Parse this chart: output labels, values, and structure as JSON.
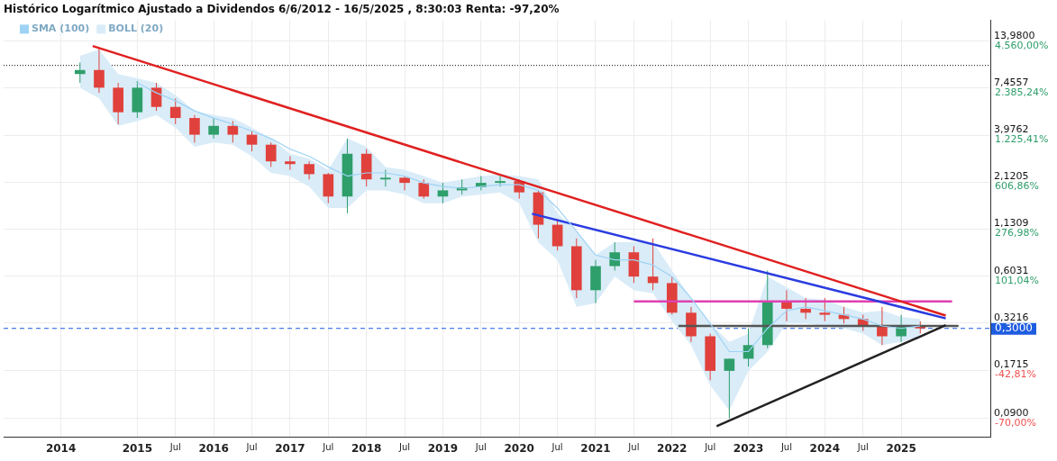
{
  "chart_data": {
    "type": "candlestick",
    "title": "Histórico Logarítmico Ajustado a Dividendos 6/6/2012 - 16/5/2025 , 8:30:03 Renta: -97,20%",
    "x": [
      "2014-04",
      "2014-07",
      "2014-10",
      "2015-01",
      "2015-04",
      "2015-07",
      "2015-10",
      "2016-01",
      "2016-04",
      "2016-07",
      "2016-10",
      "2017-01",
      "2017-04",
      "2017-07",
      "2017-10",
      "2018-01",
      "2018-04",
      "2018-07",
      "2018-10",
      "2019-01",
      "2019-04",
      "2019-07",
      "2019-10",
      "2020-01",
      "2020-04",
      "2020-07",
      "2020-10",
      "2021-01",
      "2021-04",
      "2021-07",
      "2021-10",
      "2022-01",
      "2022-04",
      "2022-07",
      "2022-10",
      "2023-01",
      "2023-04",
      "2023-07",
      "2023-10",
      "2024-01",
      "2024-04",
      "2024-07",
      "2024-10",
      "2025-01",
      "2025-04"
    ],
    "ohlc": [
      [
        9.0,
        10.5,
        8.0,
        9.5
      ],
      [
        9.5,
        12.8,
        7.0,
        7.5
      ],
      [
        7.5,
        8.0,
        4.6,
        5.4
      ],
      [
        5.4,
        8.2,
        5.0,
        7.5
      ],
      [
        7.5,
        8.0,
        5.5,
        5.8
      ],
      [
        5.8,
        6.5,
        4.6,
        5.0
      ],
      [
        5.0,
        5.2,
        3.6,
        4.0
      ],
      [
        4.0,
        5.0,
        3.8,
        4.5
      ],
      [
        4.5,
        4.8,
        3.6,
        4.0
      ],
      [
        4.0,
        4.2,
        3.2,
        3.5
      ],
      [
        3.5,
        3.6,
        2.6,
        2.8
      ],
      [
        2.8,
        3.0,
        2.5,
        2.7
      ],
      [
        2.7,
        2.8,
        2.2,
        2.36
      ],
      [
        2.36,
        2.4,
        1.6,
        1.75
      ],
      [
        1.75,
        3.8,
        1.4,
        3.1
      ],
      [
        3.1,
        3.3,
        2.0,
        2.2
      ],
      [
        2.2,
        2.5,
        2.0,
        2.25
      ],
      [
        2.25,
        2.3,
        1.9,
        2.1
      ],
      [
        2.1,
        2.2,
        1.7,
        1.75
      ],
      [
        1.75,
        2.1,
        1.6,
        1.9
      ],
      [
        1.9,
        2.2,
        1.8,
        1.98
      ],
      [
        1.98,
        2.3,
        1.9,
        2.1
      ],
      [
        2.1,
        2.3,
        2.0,
        2.15
      ],
      [
        2.15,
        2.2,
        1.7,
        1.85
      ],
      [
        1.85,
        1.9,
        1.0,
        1.2
      ],
      [
        1.2,
        1.3,
        0.85,
        0.9
      ],
      [
        0.9,
        1.0,
        0.45,
        0.5
      ],
      [
        0.5,
        0.75,
        0.42,
        0.69
      ],
      [
        0.69,
        0.95,
        0.65,
        0.83
      ],
      [
        0.83,
        0.9,
        0.55,
        0.6
      ],
      [
        0.6,
        1.0,
        0.5,
        0.55
      ],
      [
        0.55,
        0.6,
        0.36,
        0.37
      ],
      [
        0.37,
        0.4,
        0.25,
        0.27
      ],
      [
        0.27,
        0.28,
        0.15,
        0.17
      ],
      [
        0.17,
        0.2,
        0.09,
        0.2
      ],
      [
        0.2,
        0.3,
        0.18,
        0.24
      ],
      [
        0.24,
        0.65,
        0.23,
        0.43
      ],
      [
        0.43,
        0.5,
        0.33,
        0.39
      ],
      [
        0.39,
        0.45,
        0.34,
        0.37
      ],
      [
        0.37,
        0.45,
        0.33,
        0.36
      ],
      [
        0.36,
        0.4,
        0.32,
        0.34
      ],
      [
        0.34,
        0.36,
        0.29,
        0.31
      ],
      [
        0.31,
        0.4,
        0.24,
        0.27
      ],
      [
        0.27,
        0.36,
        0.25,
        0.31
      ],
      [
        0.31,
        0.33,
        0.28,
        0.3
      ]
    ],
    "colors": [
      "#2e9e6a",
      "#e0413c",
      "#e0413c",
      "#2e9e6a",
      "#e0413c",
      "#e0413c",
      "#e0413c",
      "#2e9e6a",
      "#e0413c",
      "#e0413c",
      "#e0413c",
      "#e0413c",
      "#e0413c",
      "#e0413c",
      "#2e9e6a",
      "#e0413c",
      "#2e9e6a",
      "#e0413c",
      "#e0413c",
      "#2e9e6a",
      "#2e9e6a",
      "#2e9e6a",
      "#2e9e6a",
      "#e0413c",
      "#e0413c",
      "#e0413c",
      "#e0413c",
      "#2e9e6a",
      "#2e9e6a",
      "#e0413c",
      "#e0413c",
      "#e0413c",
      "#e0413c",
      "#e0413c",
      "#2e9e6a",
      "#2e9e6a",
      "#2e9e6a",
      "#e0413c",
      "#e0413c",
      "#e0413c",
      "#e0413c",
      "#e0413c",
      "#e0413c",
      "#2e9e6a",
      "#e0413c"
    ],
    "series": [
      {
        "type": "line",
        "name": "SMA (100)",
        "color": "#9fd3f5",
        "values": [
          null,
          null,
          null,
          8.0,
          7.0,
          6.3,
          5.5,
          5.0,
          4.6,
          4.2,
          3.8,
          3.3,
          3.0,
          2.6,
          2.3,
          2.4,
          2.4,
          2.3,
          2.1,
          2.0,
          1.95,
          2.0,
          2.05,
          2.05,
          1.9,
          1.5,
          1.1,
          0.8,
          0.75,
          0.75,
          0.7,
          0.6,
          0.45,
          0.32,
          0.22,
          0.22,
          0.3,
          0.38,
          0.4,
          0.38,
          0.36,
          0.34,
          0.31,
          0.3,
          0.31
        ]
      },
      {
        "type": "area",
        "name": "BOLL (20)",
        "color": "#d9ecf8",
        "values": [
          null,
          null,
          null,
          null,
          null,
          null,
          null,
          null,
          null,
          null,
          null,
          null,
          null,
          null,
          null,
          null,
          null,
          null,
          null,
          null,
          null,
          null,
          null,
          null,
          null,
          null,
          null,
          null,
          null,
          null,
          null,
          null,
          null,
          null,
          null,
          null,
          null,
          null,
          null,
          null,
          null,
          null,
          null,
          null,
          null
        ],
        "lower": [
          7.5,
          6.5,
          4.5,
          4.8,
          5.2,
          4.4,
          3.4,
          3.6,
          3.5,
          3.0,
          2.4,
          2.3,
          2.0,
          1.5,
          1.5,
          1.9,
          1.9,
          1.8,
          1.6,
          1.6,
          1.75,
          1.8,
          1.85,
          1.6,
          0.95,
          0.75,
          0.4,
          0.42,
          0.6,
          0.5,
          0.48,
          0.33,
          0.24,
          0.14,
          0.1,
          0.17,
          0.22,
          0.32,
          0.32,
          0.31,
          0.3,
          0.28,
          0.24,
          0.25,
          0.27
        ],
        "upper": [
          11.5,
          12.5,
          9.0,
          8.5,
          8.0,
          6.8,
          5.5,
          5.2,
          5.0,
          4.4,
          3.8,
          3.1,
          2.9,
          2.5,
          3.8,
          3.4,
          2.6,
          2.5,
          2.3,
          2.1,
          2.2,
          2.3,
          2.35,
          2.3,
          2.2,
          1.4,
          1.1,
          0.8,
          0.95,
          0.95,
          0.95,
          0.65,
          0.45,
          0.32,
          0.25,
          0.28,
          0.6,
          0.52,
          0.45,
          0.44,
          0.4,
          0.37,
          0.38,
          0.35,
          0.34
        ]
      },
      {
        "type": "line",
        "color": "#e02020",
        "x": [
          "2014-06",
          "2025-08"
        ],
        "values": [
          13.1,
          0.356
        ]
      },
      {
        "type": "line",
        "color": "#2a3ce0",
        "x": [
          "2020-03",
          "2025-08"
        ],
        "values": [
          1.39,
          0.343
        ]
      },
      {
        "type": "line",
        "color": "#e040b0",
        "x": [
          "2021-07",
          "2025-09"
        ],
        "values": [
          0.43,
          0.43
        ]
      },
      {
        "type": "line",
        "color": "#222222",
        "x": [
          "2022-08",
          "2025-08"
        ],
        "values": [
          0.081,
          0.313
        ]
      },
      {
        "type": "line",
        "color": "#555555",
        "x": [
          "2022-02",
          "2025-10"
        ],
        "values": [
          0.31,
          0.31
        ]
      }
    ],
    "log": "y",
    "ylim": [
      0.07,
      18.5
    ],
    "yticks": [
      {
        "value": 0.09,
        "label": "0,0900"
      },
      {
        "value": 0.1715,
        "label": "0,1715"
      },
      {
        "value": 0.3216,
        "label": "0,3216"
      },
      {
        "value": 0.6031,
        "label": "0,6031"
      },
      {
        "value": 1.1309,
        "label": "1,1309"
      },
      {
        "value": 2.1205,
        "label": "2,1205"
      },
      {
        "value": 3.9762,
        "label": "3,9762"
      },
      {
        "value": 7.4557,
        "label": "7,4557"
      },
      {
        "value": 13.98,
        "label": "13,9800"
      }
    ],
    "annotations": [
      "-70,00%",
      "-42,81%",
      "101,04%",
      "276,98%",
      "606,86%",
      "1.225,41%",
      "2.385,24%",
      "4.560,00%"
    ],
    "xlim": [
      "2013-04",
      "2026-03"
    ],
    "xticks": [
      {
        "value": "2014-01",
        "label": "2014"
      },
      {
        "value": "2015-01",
        "label": "2015"
      },
      {
        "value": "2015-07",
        "label": "Jul"
      },
      {
        "value": "2016-01",
        "label": "2016"
      },
      {
        "value": "2016-07",
        "label": "Jul"
      },
      {
        "value": "2017-01",
        "label": "2017"
      },
      {
        "value": "2017-07",
        "label": "Jul"
      },
      {
        "value": "2018-01",
        "label": "2018"
      },
      {
        "value": "2018-07",
        "label": "Jul"
      },
      {
        "value": "2019-01",
        "label": "2019"
      },
      {
        "value": "2019-07",
        "label": "Jul"
      },
      {
        "value": "2020-01",
        "label": "2020"
      },
      {
        "value": "2020-07",
        "label": "Jul"
      },
      {
        "value": "2021-01",
        "label": "2021"
      },
      {
        "value": "2021-07",
        "label": "Jul"
      },
      {
        "value": "2022-01",
        "label": "2022"
      },
      {
        "value": "2022-07",
        "label": "Jul"
      },
      {
        "value": "2023-01",
        "label": "2023"
      },
      {
        "value": "2023-07",
        "label": "Jul"
      },
      {
        "value": "2024-01",
        "label": "2024"
      },
      {
        "value": "2024-07",
        "label": "Jul"
      },
      {
        "value": "2025-01",
        "label": "2025"
      }
    ],
    "ref_lines": [
      {
        "axis": "y",
        "value": 10.1,
        "line_style": "dotted",
        "color": "#000000"
      },
      {
        "axis": "y",
        "value": 0.3,
        "label": "0,3000",
        "line_style": "dashed",
        "color": "#1e5ce0"
      }
    ],
    "grid": true,
    "legend": "top left"
  }
}
